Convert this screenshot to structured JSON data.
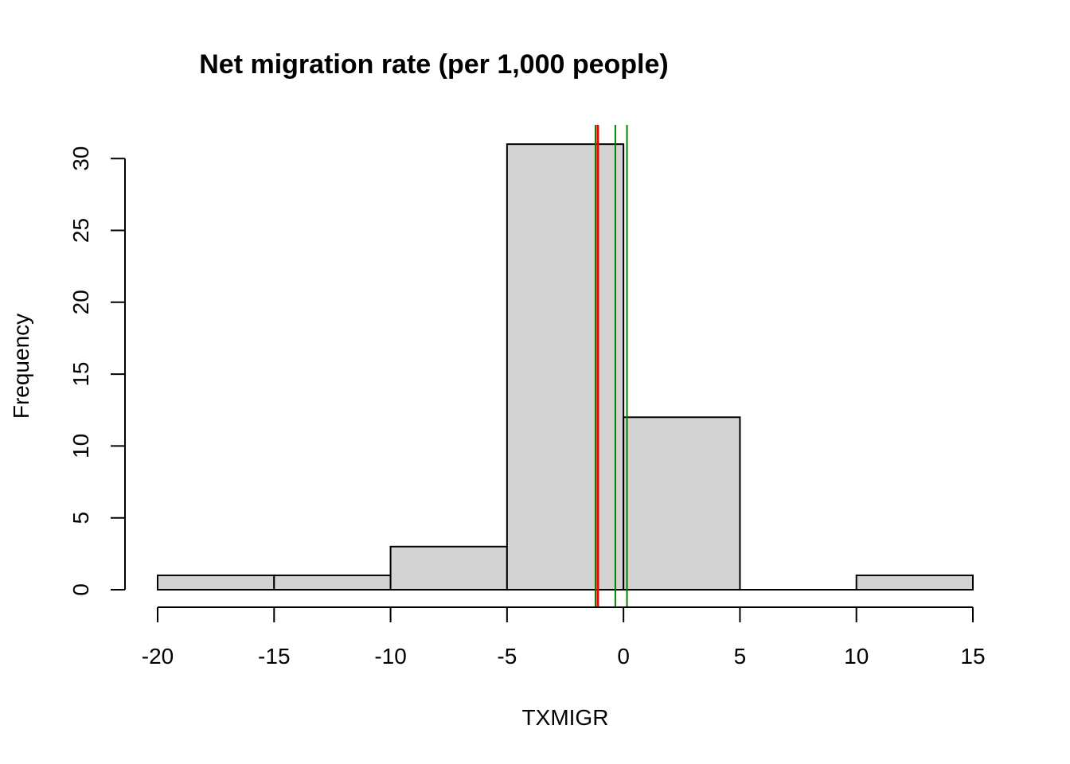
{
  "chart_data": {
    "type": "bar",
    "title": "Net migration rate (per 1,000 people)",
    "xlabel": "TXMIGR",
    "ylabel": "Frequency",
    "bins": [
      {
        "x0": -20,
        "x1": -15,
        "count": 1
      },
      {
        "x0": -15,
        "x1": -10,
        "count": 1
      },
      {
        "x0": -10,
        "x1": -5,
        "count": 3
      },
      {
        "x0": -5,
        "x1": 0,
        "count": 31
      },
      {
        "x0": 0,
        "x1": 5,
        "count": 12
      },
      {
        "x0": 5,
        "x1": 10,
        "count": 0
      },
      {
        "x0": 10,
        "x1": 15,
        "count": 1
      }
    ],
    "xlim": [
      -20,
      15
    ],
    "ylim": [
      0,
      32
    ],
    "x_ticks": [
      -20,
      -15,
      -10,
      -5,
      0,
      5,
      10,
      15
    ],
    "x_tick_labels": [
      "-20",
      "-15",
      "-10",
      "-5",
      "0",
      "5",
      "10",
      "15"
    ],
    "y_ticks": [
      0,
      5,
      10,
      15,
      20,
      25,
      30
    ],
    "y_tick_labels": [
      "0",
      "5",
      "10",
      "15",
      "20",
      "25",
      "30"
    ],
    "bar_fill": "#d3d3d3",
    "bar_stroke": "#000000",
    "reference_lines": [
      {
        "x": -1.2,
        "color": "#008000"
      },
      {
        "x": -1.1,
        "color": "#ff0000"
      },
      {
        "x": -0.35,
        "color": "#008000"
      },
      {
        "x": 0.15,
        "color": "#008000"
      }
    ],
    "grid": false
  }
}
